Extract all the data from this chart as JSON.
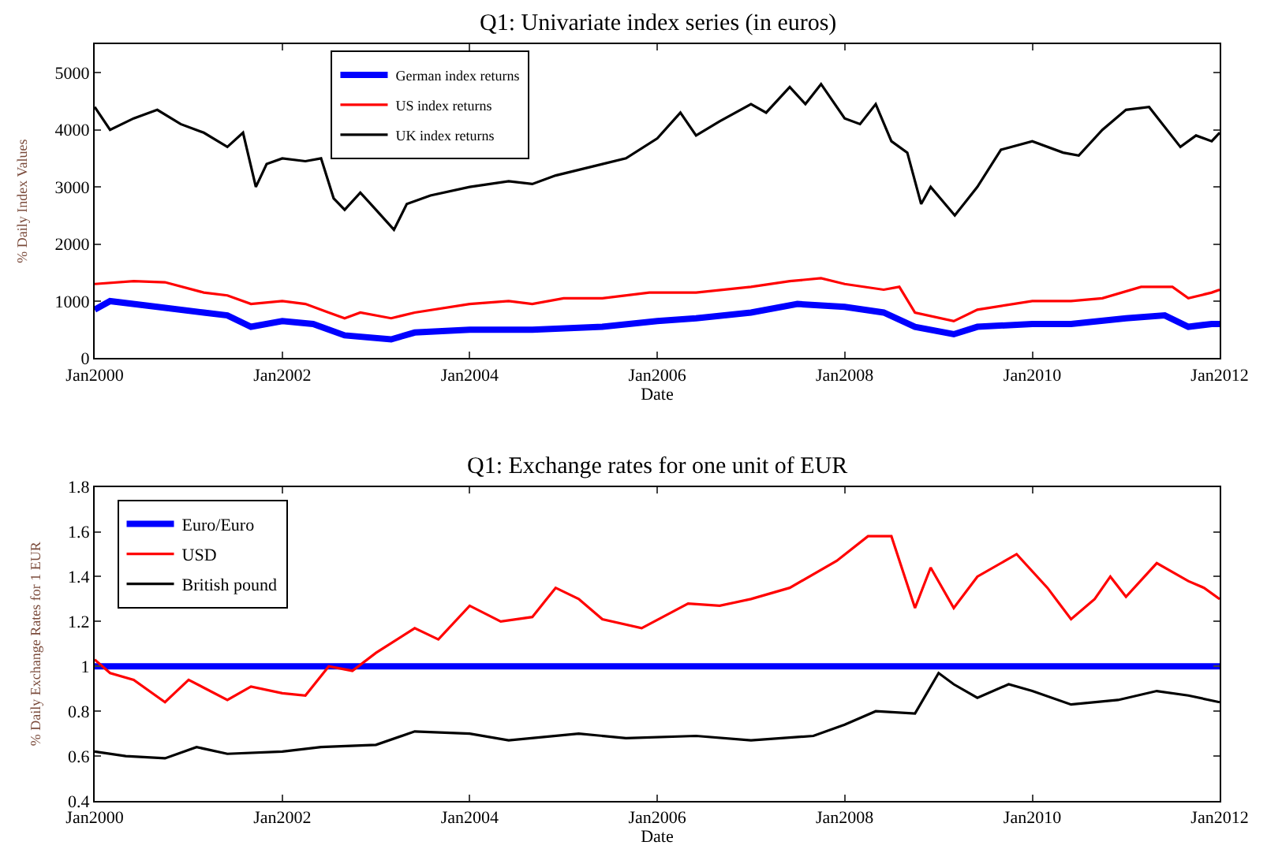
{
  "chart_data": [
    {
      "type": "line",
      "title": "Q1: Univariate index series (in euros)",
      "xlabel": "Date",
      "ylabel": "% Daily Index Values",
      "legend": "top left",
      "xlim": [
        "2000-01-01",
        "2012-01-01"
      ],
      "xticks": [
        {
          "value": "2000-01-01",
          "label": "Jan2000"
        },
        {
          "value": "2002-01-01",
          "label": "Jan2002"
        },
        {
          "value": "2004-01-01",
          "label": "Jan2004"
        },
        {
          "value": "2006-01-01",
          "label": "Jan2006"
        },
        {
          "value": "2008-01-01",
          "label": "Jan2008"
        },
        {
          "value": "2010-01-01",
          "label": "Jan2010"
        },
        {
          "value": "2012-01-01",
          "label": "Jan2012"
        }
      ],
      "ylim": [
        0,
        5500
      ],
      "yticks": [
        0,
        1000,
        2000,
        3000,
        4000,
        5000
      ],
      "series": [
        {
          "name": "German index returns",
          "color": "#0000ff",
          "x": [
            "2000-01",
            "2000-03",
            "2000-09",
            "2001-03",
            "2001-06",
            "2001-09",
            "2002-01",
            "2002-05",
            "2002-09",
            "2003-03",
            "2003-06",
            "2004-01",
            "2004-09",
            "2005-06",
            "2006-01",
            "2006-06",
            "2007-01",
            "2007-07",
            "2008-01",
            "2008-06",
            "2008-10",
            "2009-03",
            "2009-06",
            "2010-01",
            "2010-06",
            "2011-01",
            "2011-06",
            "2011-09",
            "2011-12",
            "2012-01"
          ],
          "values": [
            850,
            1000,
            900,
            800,
            750,
            550,
            650,
            600,
            400,
            330,
            450,
            500,
            500,
            550,
            650,
            700,
            800,
            950,
            900,
            800,
            550,
            420,
            550,
            600,
            600,
            700,
            750,
            550,
            600,
            600
          ]
        },
        {
          "name": "US index returns",
          "color": "#ff0000",
          "x": [
            "2000-01",
            "2000-06",
            "2000-10",
            "2001-03",
            "2001-06",
            "2001-09",
            "2002-01",
            "2002-04",
            "2002-07",
            "2002-09",
            "2002-11",
            "2003-03",
            "2003-06",
            "2004-01",
            "2004-06",
            "2004-09",
            "2005-01",
            "2005-06",
            "2005-12",
            "2006-06",
            "2007-01",
            "2007-06",
            "2007-10",
            "2008-01",
            "2008-06",
            "2008-08",
            "2008-10",
            "2009-03",
            "2009-06",
            "2010-01",
            "2010-06",
            "2010-10",
            "2011-03",
            "2011-07",
            "2011-09",
            "2011-12",
            "2012-01"
          ],
          "values": [
            1300,
            1350,
            1330,
            1150,
            1100,
            950,
            1000,
            950,
            800,
            700,
            800,
            700,
            800,
            950,
            1000,
            950,
            1050,
            1050,
            1150,
            1150,
            1250,
            1350,
            1400,
            1300,
            1200,
            1250,
            800,
            650,
            850,
            1000,
            1000,
            1050,
            1250,
            1250,
            1050,
            1150,
            1200
          ]
        },
        {
          "name": "UK index returns",
          "color": "#000000",
          "x": [
            "2000-01",
            "2000-03",
            "2000-06",
            "2000-09",
            "2000-12",
            "2001-03",
            "2001-06",
            "2001-08",
            "2001-09-20",
            "2001-11",
            "2002-01",
            "2002-04",
            "2002-06",
            "2002-07-20",
            "2002-09",
            "2002-11",
            "2003-01",
            "2003-03-12",
            "2003-05",
            "2003-08",
            "2004-01",
            "2004-06",
            "2004-09",
            "2004-12",
            "2005-06",
            "2005-09",
            "2006-01",
            "2006-04",
            "2006-06",
            "2006-09",
            "2007-01",
            "2007-03",
            "2007-06",
            "2007-08",
            "2007-10",
            "2008-01",
            "2008-03",
            "2008-05",
            "2008-07",
            "2008-09",
            "2008-10-25",
            "2008-12",
            "2009-03-05",
            "2009-06",
            "2009-09",
            "2010-01",
            "2010-05",
            "2010-07",
            "2010-10",
            "2011-01",
            "2011-04",
            "2011-08",
            "2011-10",
            "2011-12",
            "2012-01"
          ],
          "values": [
            4400,
            4000,
            4200,
            4350,
            4100,
            3950,
            3700,
            3950,
            3000,
            3400,
            3500,
            3450,
            3500,
            2800,
            2600,
            2900,
            2600,
            2250,
            2700,
            2850,
            3000,
            3100,
            3050,
            3200,
            3400,
            3500,
            3850,
            4300,
            3900,
            4150,
            4450,
            4300,
            4750,
            4450,
            4800,
            4200,
            4100,
            4450,
            3800,
            3600,
            2700,
            3000,
            2500,
            3000,
            3650,
            3800,
            3600,
            3550,
            4000,
            4350,
            4400,
            3700,
            3900,
            3800,
            3950
          ]
        }
      ]
    },
    {
      "type": "line",
      "title": "Q1: Exchange rates for one unit of EUR",
      "xlabel": "Date",
      "ylabel": "% Daily Exchange Rates for 1 EUR",
      "legend": "top left",
      "xlim": [
        "2000-01-01",
        "2012-01-01"
      ],
      "xticks": [
        {
          "value": "2000-01-01",
          "label": "Jan2000"
        },
        {
          "value": "2002-01-01",
          "label": "Jan2002"
        },
        {
          "value": "2004-01-01",
          "label": "Jan2004"
        },
        {
          "value": "2006-01-01",
          "label": "Jan2006"
        },
        {
          "value": "2008-01-01",
          "label": "Jan2008"
        },
        {
          "value": "2010-01-01",
          "label": "Jan2010"
        },
        {
          "value": "2012-01-01",
          "label": "Jan2012"
        }
      ],
      "ylim": [
        0.4,
        1.8
      ],
      "yticks": [
        0.4,
        0.6,
        0.8,
        1,
        1.2,
        1.4,
        1.6,
        1.8
      ],
      "series": [
        {
          "name": "Euro/Euro",
          "color": "#0000ff",
          "x": [
            "2000-01",
            "2012-01"
          ],
          "values": [
            1,
            1
          ]
        },
        {
          "name": "USD",
          "color": "#ff0000",
          "x": [
            "2000-01",
            "2000-03",
            "2000-06",
            "2000-10",
            "2001-01",
            "2001-06",
            "2001-09",
            "2002-01",
            "2002-04",
            "2002-07",
            "2002-10",
            "2003-01",
            "2003-06",
            "2003-09",
            "2004-01",
            "2004-05",
            "2004-09",
            "2004-12",
            "2005-03",
            "2005-06",
            "2005-11",
            "2006-05",
            "2006-09",
            "2007-01",
            "2007-06",
            "2007-12",
            "2008-04",
            "2008-07",
            "2008-10",
            "2008-12",
            "2009-03",
            "2009-06",
            "2009-11",
            "2010-03",
            "2010-06",
            "2010-09",
            "2010-11",
            "2011-01",
            "2011-05",
            "2011-09",
            "2011-11",
            "2012-01"
          ],
          "values": [
            1.03,
            0.97,
            0.94,
            0.84,
            0.94,
            0.85,
            0.91,
            0.88,
            0.87,
            1.0,
            0.98,
            1.06,
            1.17,
            1.12,
            1.27,
            1.2,
            1.22,
            1.35,
            1.3,
            1.21,
            1.17,
            1.28,
            1.27,
            1.3,
            1.35,
            1.47,
            1.58,
            1.58,
            1.26,
            1.44,
            1.26,
            1.4,
            1.5,
            1.35,
            1.21,
            1.3,
            1.4,
            1.31,
            1.46,
            1.38,
            1.35,
            1.3
          ]
        },
        {
          "name": "British pound",
          "color": "#000000",
          "x": [
            "2000-01",
            "2000-05",
            "2000-10",
            "2001-02",
            "2001-06",
            "2002-01",
            "2002-06",
            "2003-01",
            "2003-06",
            "2004-01",
            "2004-06",
            "2005-03",
            "2005-09",
            "2006-06",
            "2007-01",
            "2007-09",
            "2008-01",
            "2008-05",
            "2008-10",
            "2009-01",
            "2009-03",
            "2009-06",
            "2009-10",
            "2010-01",
            "2010-06",
            "2010-12",
            "2011-05",
            "2011-09",
            "2012-01"
          ],
          "values": [
            0.62,
            0.6,
            0.59,
            0.64,
            0.61,
            0.62,
            0.64,
            0.65,
            0.71,
            0.7,
            0.67,
            0.7,
            0.68,
            0.69,
            0.67,
            0.69,
            0.74,
            0.8,
            0.79,
            0.97,
            0.92,
            0.86,
            0.92,
            0.89,
            0.83,
            0.85,
            0.89,
            0.87,
            0.84
          ]
        }
      ]
    }
  ]
}
